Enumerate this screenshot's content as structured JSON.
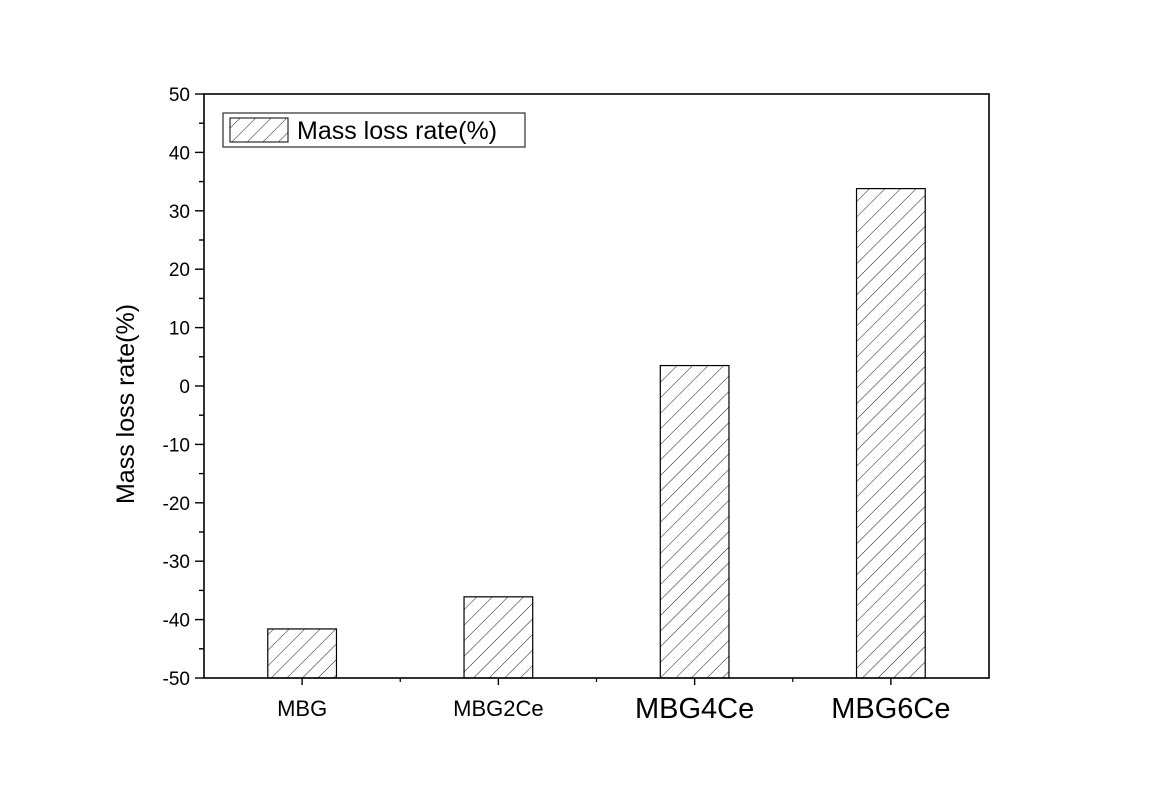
{
  "chart_data": {
    "type": "bar",
    "title": "",
    "xlabel": "",
    "ylabel": "Mass loss rate(%)",
    "ylim": [
      -50,
      50
    ],
    "yticks": [
      50,
      40,
      30,
      20,
      10,
      0,
      -10,
      -20,
      -30,
      -40,
      -50
    ],
    "categories": [
      "MBG",
      "MBG2Ce",
      "MBG4Ce",
      "MBG6Ce"
    ],
    "series": [
      {
        "name": "Mass loss rate(%)",
        "values": [
          -41.6,
          -36.1,
          3.5,
          33.8
        ]
      }
    ],
    "bar_fill": "hatched",
    "grid": false,
    "legend": "top-left"
  }
}
